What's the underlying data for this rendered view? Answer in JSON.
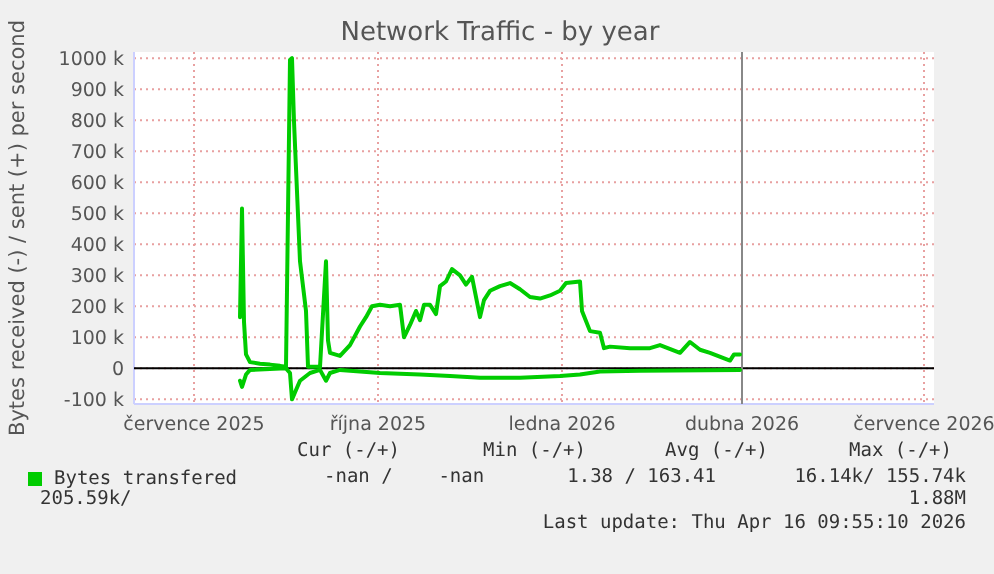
{
  "chart_data": {
    "type": "line",
    "title": "Network Traffic - by year",
    "ylabel": "Bytes received (-) / sent (+) per second",
    "xlim": [
      "2025-06-16",
      "2026-07-21"
    ],
    "xticks": [
      {
        "value": "2025-07-16",
        "label": "července 2025"
      },
      {
        "value": "2025-10-16",
        "label": "října 2025"
      },
      {
        "value": "2026-01-16",
        "label": "ledna 2026"
      },
      {
        "value": "2026-04-16",
        "label": "dubna 2026"
      },
      {
        "value": "2026-07-16",
        "label": "července 2026"
      }
    ],
    "ylim": [
      -115,
      1020
    ],
    "yticks": [
      {
        "value": -100,
        "label": "-100 k"
      },
      0,
      {
        "value": 100,
        "label": "100 k"
      },
      {
        "value": 200,
        "label": "200 k"
      },
      {
        "value": 300,
        "label": "300 k"
      },
      {
        "value": 400,
        "label": "400 k"
      },
      {
        "value": 500,
        "label": "500 k"
      },
      {
        "value": 600,
        "label": "600 k"
      },
      {
        "value": 700,
        "label": "700 k"
      },
      {
        "value": 800,
        "label": "800 k"
      },
      {
        "value": 900,
        "label": "900 k"
      },
      {
        "value": 1000,
        "label": "1000 k"
      }
    ],
    "grid": true,
    "legend": "bottom",
    "ref_lines": [
      {
        "axis": "x",
        "value": "2026-04-16",
        "color": "#888888"
      }
    ],
    "series": [
      {
        "name": "Bytes transfered",
        "color": "#00cc00",
        "x": [
          "2025-08-08",
          "2025-08-09",
          "2025-08-10",
          "2025-08-11",
          "2025-08-13",
          "2025-08-18",
          "2025-08-23",
          "2025-08-28",
          "2025-08-31",
          "2025-09-02",
          "2025-09-03",
          "2025-09-04",
          "2025-09-07",
          "2025-09-10",
          "2025-09-11",
          "2025-09-17",
          "2025-09-20",
          "2025-09-21",
          "2025-09-22",
          "2025-09-27",
          "2025-10-02",
          "2025-10-07",
          "2025-10-10",
          "2025-10-13",
          "2025-10-17",
          "2025-10-22",
          "2025-10-27",
          "2025-10-29",
          "2025-11-01",
          "2025-11-04",
          "2025-11-06",
          "2025-11-08",
          "2025-11-11",
          "2025-11-14",
          "2025-11-16",
          "2025-11-19",
          "2025-11-22",
          "2025-11-26",
          "2025-11-29",
          "2025-12-02",
          "2025-12-06",
          "2025-12-08",
          "2025-12-11",
          "2025-12-16",
          "2025-12-21",
          "2025-12-26",
          "2025-12-31",
          "2026-01-05",
          "2026-01-10",
          "2026-01-15",
          "2026-01-18",
          "2026-01-25",
          "2026-01-26",
          "2026-01-30",
          "2026-02-04",
          "2026-02-06",
          "2026-02-09",
          "2026-02-19",
          "2026-03-01",
          "2026-03-06",
          "2026-03-16",
          "2026-03-21",
          "2026-03-26",
          "2026-03-31",
          "2026-04-10",
          "2026-04-12",
          "2026-04-15"
        ],
        "values": [
          165,
          515,
          150,
          45,
          20,
          15,
          12,
          8,
          5,
          995,
          1000,
          795,
          345,
          185,
          5,
          5,
          345,
          90,
          50,
          40,
          75,
          135,
          165,
          200,
          205,
          200,
          205,
          100,
          140,
          185,
          155,
          205,
          205,
          175,
          265,
          280,
          320,
          300,
          270,
          295,
          165,
          220,
          250,
          265,
          275,
          255,
          230,
          225,
          235,
          250,
          275,
          280,
          185,
          120,
          115,
          65,
          70,
          65,
          65,
          75,
          50,
          85,
          60,
          50,
          25,
          45,
          45
        ]
      },
      {
        "color": "#00cc00",
        "x": [
          "2025-08-08",
          "2025-08-09",
          "2025-08-11",
          "2025-08-13",
          "2025-08-31",
          "2025-09-02",
          "2025-09-03",
          "2025-09-05",
          "2025-09-07",
          "2025-09-12",
          "2025-09-17",
          "2025-09-20",
          "2025-09-22",
          "2025-09-27",
          "2025-10-17",
          "2025-11-06",
          "2025-11-21",
          "2025-12-06",
          "2025-12-26",
          "2026-01-15",
          "2026-01-25",
          "2026-02-04",
          "2026-02-24",
          "2026-04-15"
        ],
        "values": [
          -40,
          -60,
          -20,
          -5,
          0,
          -15,
          -100,
          -70,
          -40,
          -15,
          -5,
          -40,
          -15,
          -5,
          -15,
          -20,
          -25,
          -30,
          -30,
          -25,
          -20,
          -10,
          -8,
          -5
        ]
      }
    ],
    "annotations": [
      "Cur (-/+)",
      "Min (-/+)",
      "Avg (-/+)",
      "Max (-/+)",
      "-nan /    -nan",
      "1.38 / 163.41",
      "16.14k/ 155.74k",
      "205.59k/",
      "1.88M",
      "Last update: Thu Apr 16 09:55:10 2026"
    ]
  }
}
